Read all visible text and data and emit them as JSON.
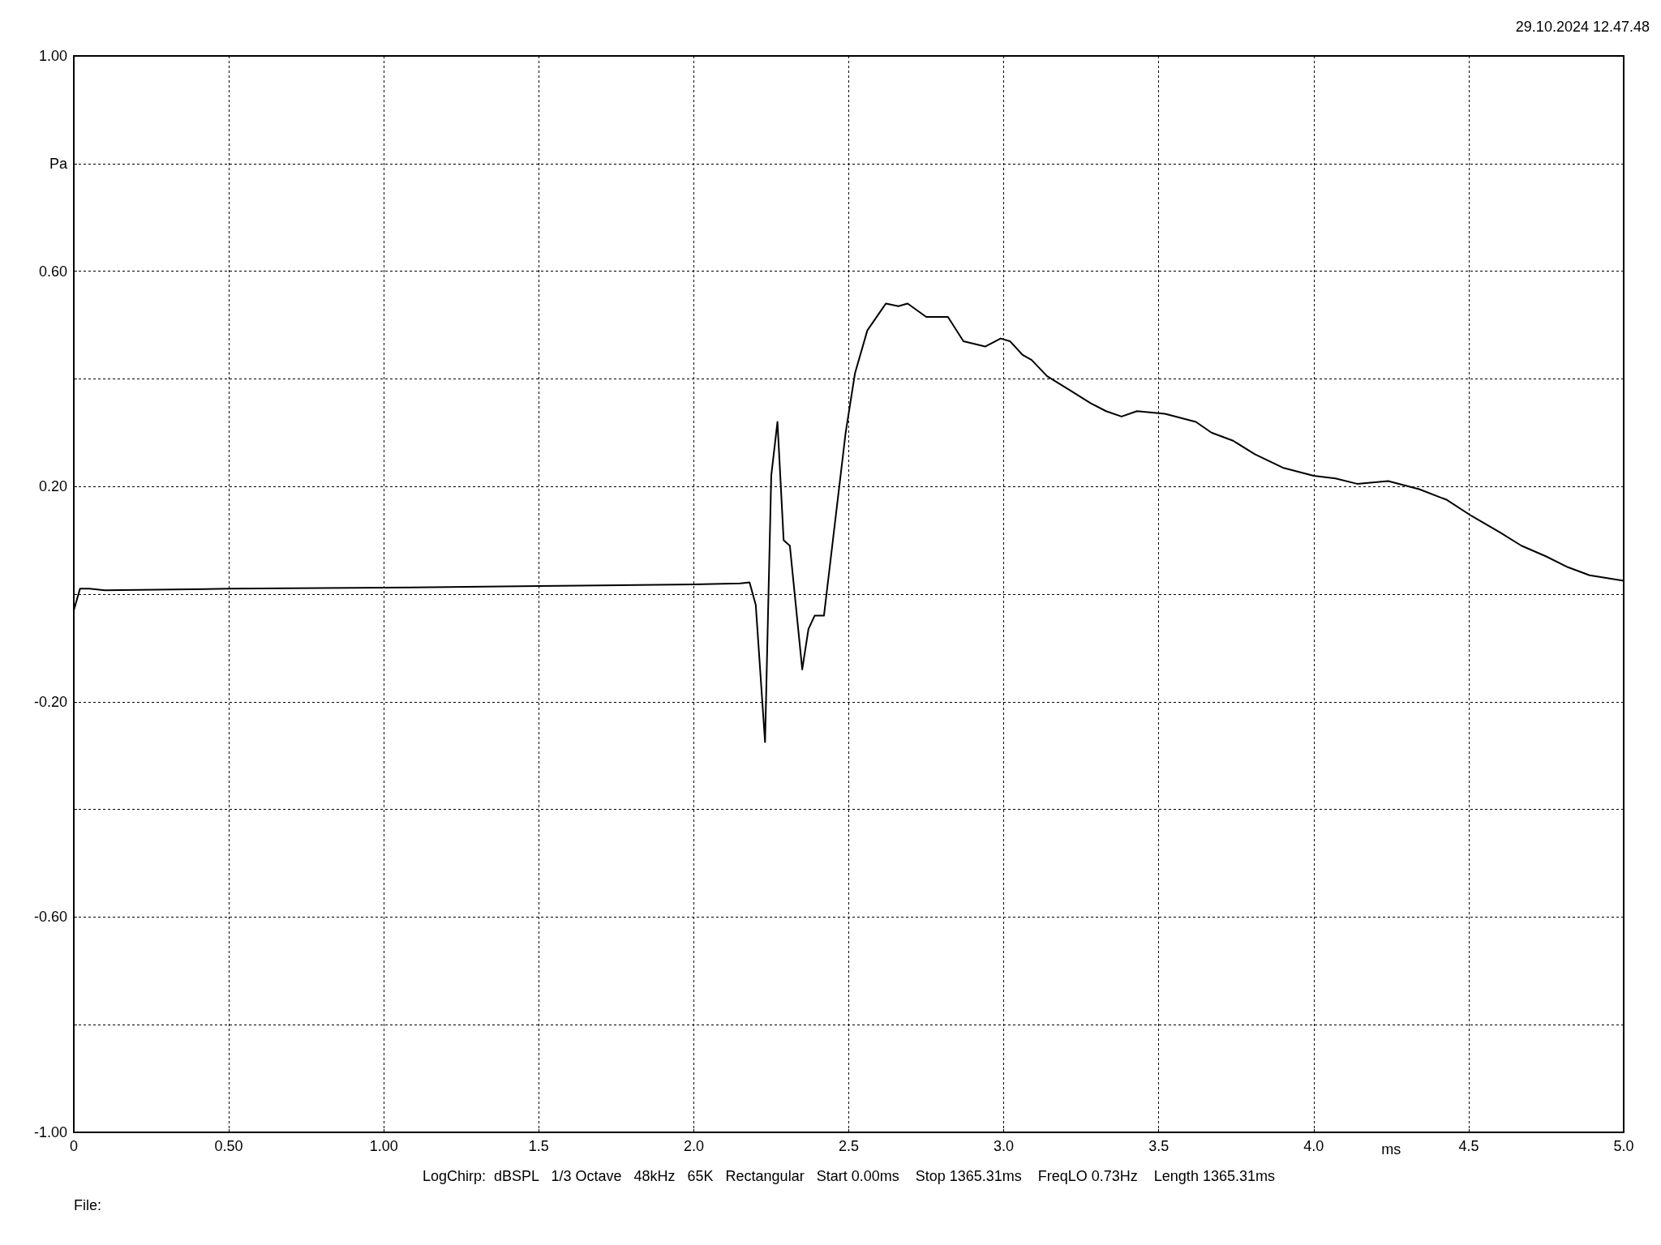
{
  "chart_data": {
    "type": "line",
    "xlabel": "ms",
    "ylabel": "Pa",
    "annotations": [
      "29.10.2024 12.47.48",
      "LogChirp:  dBSPL   1/3 Octave   48kHz   65K   Rectangular   Start 0.00ms    Stop 1365.31ms    FreqLO 0.73Hz    Length 1365.31ms",
      "File:"
    ],
    "x": [
      0,
      0.02,
      0.05,
      0.1,
      0.5,
      1.0,
      1.5,
      2.0,
      2.15,
      2.18,
      2.2,
      2.23,
      2.25,
      2.27,
      2.29,
      2.31,
      2.35,
      2.37,
      2.39,
      2.42,
      2.49,
      2.52,
      2.56,
      2.62,
      2.66,
      2.69,
      2.75,
      2.82,
      2.87,
      2.94,
      2.99,
      3.02,
      3.06,
      3.09,
      3.14,
      3.21,
      3.28,
      3.33,
      3.38,
      3.43,
      3.52,
      3.62,
      3.67,
      3.74,
      3.81,
      3.9,
      4.0,
      4.07,
      4.14,
      4.24,
      4.34,
      4.43,
      4.51,
      4.6,
      4.67,
      4.75,
      4.82,
      4.89,
      5.0
    ],
    "series": [
      {
        "color": "#000000",
        "values": [
          -0.03,
          0.01,
          0.01,
          0.007,
          0.01,
          0.012,
          0.015,
          0.018,
          0.02,
          0.022,
          -0.02,
          -0.275,
          0.22,
          0.32,
          0.1,
          0.09,
          -0.14,
          -0.065,
          -0.04,
          -0.04,
          0.3,
          0.41,
          0.49,
          0.54,
          0.535,
          0.54,
          0.515,
          0.515,
          0.47,
          0.46,
          0.475,
          0.47,
          0.445,
          0.435,
          0.405,
          0.38,
          0.355,
          0.34,
          0.33,
          0.34,
          0.335,
          0.32,
          0.3,
          0.285,
          0.26,
          0.235,
          0.22,
          0.215,
          0.205,
          0.21,
          0.195,
          0.175,
          0.145,
          0.115,
          0.09,
          0.07,
          0.05,
          0.035,
          0.025
        ]
      }
    ],
    "xlim": [
      0,
      5
    ],
    "ylim": [
      -1,
      1
    ],
    "xticks": [
      0,
      {
        "value": 0.5,
        "label": "0.50"
      },
      {
        "value": 1,
        "label": "1.00"
      },
      1.5,
      {
        "value": 2,
        "label": "2.0"
      },
      2.5,
      {
        "value": 3,
        "label": "3.0"
      },
      3.5,
      {
        "value": 4,
        "label": "4.0"
      },
      4.5,
      {
        "value": 5,
        "label": "5.0"
      }
    ],
    "yticks": [
      {
        "value": -1,
        "label": "-1.00"
      },
      {
        "value": -0.8,
        "label": null
      },
      {
        "value": -0.6,
        "label": "-0.60"
      },
      {
        "value": -0.4,
        "label": null
      },
      {
        "value": -0.2,
        "label": "-0.20"
      },
      {
        "value": 0,
        "label": null
      },
      {
        "value": 0.2,
        "label": "0.20"
      },
      {
        "value": 0.4,
        "label": null
      },
      {
        "value": 0.6,
        "label": "0.60"
      },
      {
        "value": 0.8,
        "label": null
      },
      {
        "value": 1,
        "label": "1.00"
      }
    ],
    "grid": true,
    "marker": "none",
    "line_style": "solid"
  }
}
